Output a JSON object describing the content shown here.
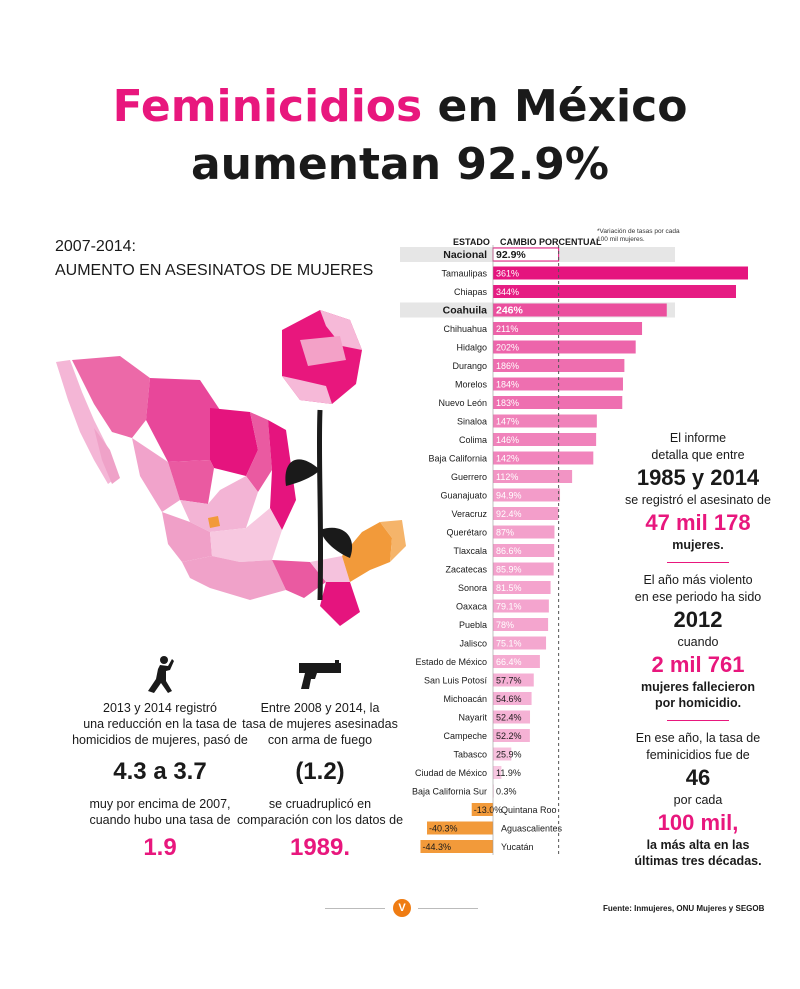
{
  "title": {
    "pink": "Feminicidios",
    "line1_rest": "en México",
    "line2": "aumentan 92.9%"
  },
  "subtitle": {
    "line1": "2007-2014:",
    "line2": "AUMENTO EN ASESINATOS DE MUJERES"
  },
  "chart_header": {
    "estado": "ESTADO",
    "cambio": "CAMBIO PORCENTUAL",
    "note": "*Variación de tasas por cada 100 mil mujeres."
  },
  "colors": {
    "accent": "#e8177d",
    "negative": "#f29a3a",
    "dark": "#1a1a1a"
  },
  "chart_data": {
    "type": "bar",
    "orientation": "horizontal",
    "zero_line": "dashed",
    "categories": [
      "Nacional",
      "Tamaulipas",
      "Chiapas",
      "Coahuila",
      "Chihuahua",
      "Hidalgo",
      "Durango",
      "Morelos",
      "Nuevo León",
      "Sinaloa",
      "Colima",
      "Baja California",
      "Guerrero",
      "Guanajuato",
      "Veracruz",
      "Querétaro",
      "Tlaxcala",
      "Zacatecas",
      "Sonora",
      "Oaxaca",
      "Puebla",
      "Jalisco",
      "Estado de México",
      "San Luis Potosí",
      "Michoacán",
      "Nayarit",
      "Campeche",
      "Tabasco",
      "Ciudad de México",
      "Baja California Sur",
      "Quintana Roo",
      "Aguascalientes",
      "Yucatán"
    ],
    "values": [
      92.9,
      361,
      344,
      246,
      211,
      202,
      186,
      184,
      183,
      147,
      146,
      142,
      112,
      94.9,
      92.4,
      87,
      86.6,
      85.9,
      81.5,
      79.1,
      78,
      75.1,
      66.4,
      57.7,
      54.6,
      52.4,
      52.2,
      25.9,
      11.9,
      0.3,
      -13.0,
      -40.3,
      -44.3
    ],
    "labels": [
      "92.9%",
      "361%",
      "344%",
      "246%",
      "211%",
      "202%",
      "186%",
      "184%",
      "183%",
      "147%",
      "146%",
      "142%",
      "112%",
      "94.9%",
      "92.4%",
      "87%",
      "86.6%",
      "85.9%",
      "81.5%",
      "79.1%",
      "78%",
      "75.1%",
      "66.4%",
      "57.7%",
      "54.6%",
      "52.4%",
      "52.2%",
      "25.9%",
      "11.9%",
      "0.3%",
      "-13.0%",
      "-40.3%",
      "-44.3%"
    ],
    "highlighted": [
      "Nacional",
      "Coahuila"
    ]
  },
  "stats": {
    "p1": "El informe",
    "p2": "detalla que entre",
    "years": "1985 y 2014",
    "p3": "se registró el asesinato de",
    "count": "47 mil 178",
    "p4": "mujeres.",
    "p5": "El año más violento",
    "p6": "en ese periodo ha sido",
    "year": "2012",
    "p7": "cuando",
    "count2": "2 mil 761",
    "p8": "mujeres fallecieron",
    "p9": "por homicidio.",
    "p10": "En ese año, la tasa de",
    "p11": "feminicidios fue de",
    "rate": "46",
    "p12": "por cada",
    "per": "100 mil,",
    "p13": "la más alta en las",
    "p14": "últimas tres décadas."
  },
  "col1": {
    "l1": "2013 y 2014 registró",
    "l2": "una reducción en la tasa de",
    "l3": "homicidios de mujeres, pasó de",
    "big": "4.3 a 3.7",
    "l4": "muy por encima de 2007,",
    "l5": "cuando hubo una tasa de",
    "pink": "1.9"
  },
  "col2": {
    "l1": "Entre 2008 y 2014, la",
    "l2": "tasa de mujeres asesinadas",
    "l3": "con arma de fuego",
    "big": "(1.2)",
    "l4": "se cruadruplicó en",
    "l5": "comparación con los datos de",
    "pink": "1989."
  },
  "source": "Fuente: Inmujeres, ONU Mujeres y SEGOB",
  "footer_logo": "V"
}
